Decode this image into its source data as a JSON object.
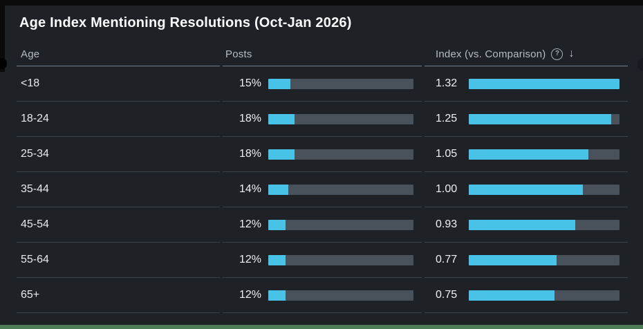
{
  "title": "Age Index Mentioning Resolutions (Oct-Jan 2026)",
  "table": {
    "columns": [
      {
        "label": "Age"
      },
      {
        "label": "Posts"
      },
      {
        "label": "Index (vs. Comparison)",
        "help_icon": "?",
        "sort_icon": "↓"
      }
    ],
    "rows": [
      {
        "age": "<18",
        "posts_label": "15%",
        "posts_value": 15,
        "index_label": "1.32",
        "index_value": 1.32
      },
      {
        "age": "18-24",
        "posts_label": "18%",
        "posts_value": 18,
        "index_label": "1.25",
        "index_value": 1.25
      },
      {
        "age": "25-34",
        "posts_label": "18%",
        "posts_value": 18,
        "index_label": "1.05",
        "index_value": 1.05
      },
      {
        "age": "35-44",
        "posts_label": "14%",
        "posts_value": 14,
        "index_label": "1.00",
        "index_value": 1.0
      },
      {
        "age": "45-54",
        "posts_label": "12%",
        "posts_value": 12,
        "index_label": "0.93",
        "index_value": 0.93
      },
      {
        "age": "55-64",
        "posts_label": "12%",
        "posts_value": 12,
        "index_label": "0.77",
        "index_value": 0.77
      },
      {
        "age": "65+",
        "posts_label": "12%",
        "posts_value": 12,
        "index_label": "0.75",
        "index_value": 0.75
      }
    ],
    "posts_bar_max": 100,
    "index_bar_max": 1.32
  },
  "chart_data": {
    "type": "table",
    "title": "Age Index Mentioning Resolutions (Oct-Jan 2026)",
    "columns": [
      "Age",
      "Posts",
      "Index (vs. Comparison)"
    ],
    "categories": [
      "<18",
      "18-24",
      "25-34",
      "35-44",
      "45-54",
      "55-64",
      "65+"
    ],
    "series": [
      {
        "name": "Posts",
        "unit": "%",
        "values": [
          15,
          18,
          18,
          14,
          12,
          12,
          12
        ],
        "axis_max": 100
      },
      {
        "name": "Index (vs. Comparison)",
        "values": [
          1.32,
          1.25,
          1.05,
          1.0,
          0.93,
          0.77,
          0.75
        ],
        "axis_max": 1.32
      }
    ],
    "sort": "index descending",
    "legend_position": "none",
    "grid": false
  },
  "colors": {
    "background": "#1e2227",
    "accent_blue": "#49c2e8",
    "bar_track": "#49515a",
    "accent_green": "#4d7c57"
  }
}
